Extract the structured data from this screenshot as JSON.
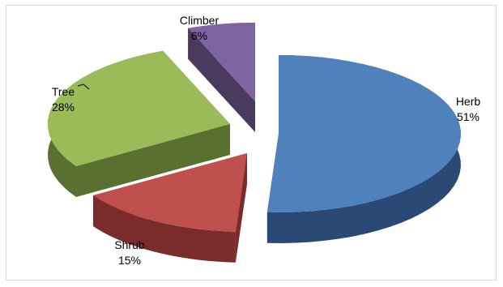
{
  "chart_data": {
    "type": "pie",
    "title": "",
    "legend": "none",
    "style": "3d-exploded",
    "slices": [
      {
        "name": "Herb",
        "value": 51,
        "label": "51%",
        "color": "#4f81bd",
        "side_color": "#2a4a75"
      },
      {
        "name": "Shrub",
        "value": 15,
        "label": "15%",
        "color": "#c0504d",
        "side_color": "#7a2c2a"
      },
      {
        "name": "Tree",
        "value": 28,
        "label": "28%",
        "color": "#9bbb59",
        "side_color": "#5a7030"
      },
      {
        "name": "Climber",
        "value": 6,
        "label": "6%",
        "color": "#8064a2",
        "side_color": "#4a3a60"
      }
    ]
  }
}
